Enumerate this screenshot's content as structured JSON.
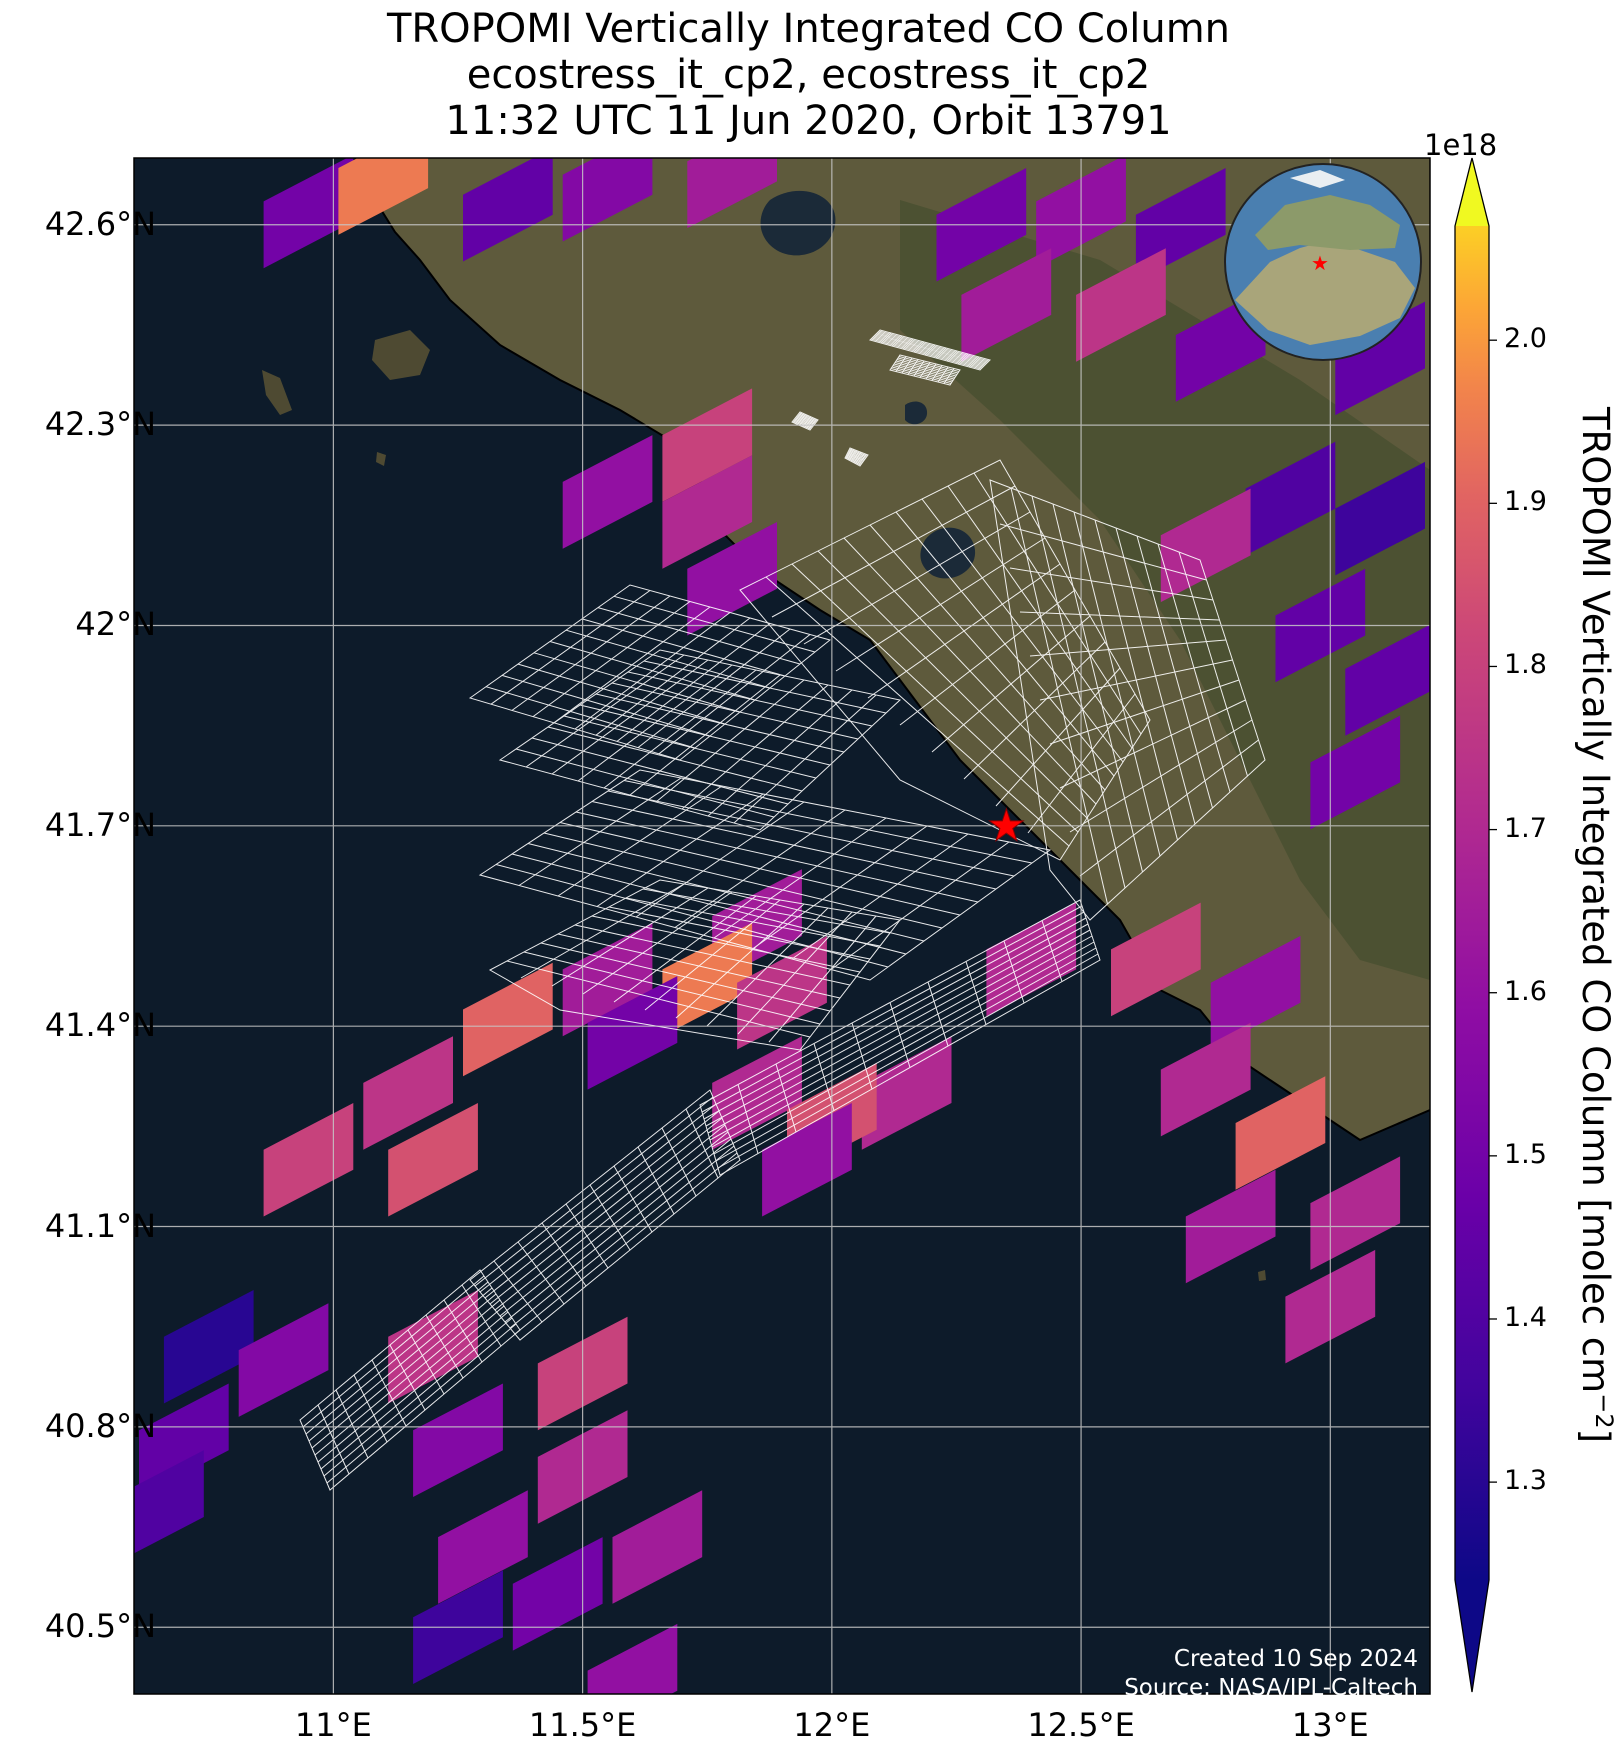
{
  "title": {
    "line1": "TROPOMI Vertically Integrated CO Column",
    "line2": "ecostress_it_cp2, ecostress_it_cp2",
    "line3": "11:32 UTC 11 Jun 2020, Orbit 13791"
  },
  "map": {
    "lon_range": [
      10.6,
      13.2
    ],
    "lat_range": [
      40.4,
      42.7
    ],
    "lat_ticks": [
      {
        "value": 42.6,
        "label": "42.6°N"
      },
      {
        "value": 42.3,
        "label": "42.3°N"
      },
      {
        "value": 42.0,
        "label": "42°N"
      },
      {
        "value": 41.7,
        "label": "41.7°N"
      },
      {
        "value": 41.4,
        "label": "41.4°N"
      },
      {
        "value": 41.1,
        "label": "41.1°N"
      },
      {
        "value": 40.8,
        "label": "40.8°N"
      },
      {
        "value": 40.5,
        "label": "40.5°N"
      }
    ],
    "lon_ticks": [
      {
        "value": 11.0,
        "label": "11°E"
      },
      {
        "value": 11.5,
        "label": "11.5°E"
      },
      {
        "value": 12.0,
        "label": "12°E"
      },
      {
        "value": 12.5,
        "label": "12.5°E"
      },
      {
        "value": 13.0,
        "label": "13°E"
      }
    ],
    "target_marker": {
      "lon": 12.35,
      "lat": 41.7,
      "symbol": "star",
      "color": "#ff0000"
    },
    "gridlines": true,
    "basemap": "satellite imagery",
    "sea_color": "#0d1b2a",
    "land_color": "#5e5a3c",
    "inset_globe": "top-right"
  },
  "colorbar": {
    "label": "TROPOMI Vertically Integrated CO Column [molec cm",
    "label_superscript": "−2",
    "label_close": "]",
    "exponent": "1e18",
    "min": 1.24,
    "max": 2.07,
    "colormap": "plasma",
    "extend": "both",
    "ticks": [
      {
        "value": 1.3,
        "label": "1.3"
      },
      {
        "value": 1.4,
        "label": "1.4"
      },
      {
        "value": 1.5,
        "label": "1.5"
      },
      {
        "value": 1.6,
        "label": "1.6"
      },
      {
        "value": 1.7,
        "label": "1.7"
      },
      {
        "value": 1.8,
        "label": "1.8"
      },
      {
        "value": 1.9,
        "label": "1.9"
      },
      {
        "value": 2.0,
        "label": "2.0"
      }
    ]
  },
  "credit": {
    "line1": "Created 10 Sep 2024",
    "line2": "Source: NASA/JPL-Caltech"
  },
  "chart_data": {
    "type": "heatmap",
    "title": "TROPOMI Vertically Integrated CO Column",
    "units": "molec cm^-2 (x1e18)",
    "cells": [
      {
        "lon": 10.95,
        "lat": 42.62,
        "value": 1.5
      },
      {
        "lon": 11.1,
        "lat": 42.67,
        "value": 1.95
      },
      {
        "lon": 11.35,
        "lat": 42.63,
        "value": 1.45
      },
      {
        "lon": 11.55,
        "lat": 42.66,
        "value": 1.55
      },
      {
        "lon": 11.8,
        "lat": 42.68,
        "value": 1.65
      },
      {
        "lon": 12.3,
        "lat": 42.6,
        "value": 1.5
      },
      {
        "lon": 12.5,
        "lat": 42.62,
        "value": 1.6
      },
      {
        "lon": 12.7,
        "lat": 42.6,
        "value": 1.45
      },
      {
        "lon": 12.35,
        "lat": 42.48,
        "value": 1.65
      },
      {
        "lon": 12.58,
        "lat": 42.48,
        "value": 1.75
      },
      {
        "lon": 12.78,
        "lat": 42.42,
        "value": 1.5
      },
      {
        "lon": 13.1,
        "lat": 42.4,
        "value": 1.45
      },
      {
        "lon": 11.75,
        "lat": 42.27,
        "value": 1.8
      },
      {
        "lon": 11.75,
        "lat": 42.17,
        "value": 1.7
      },
      {
        "lon": 11.55,
        "lat": 42.2,
        "value": 1.6
      },
      {
        "lon": 11.8,
        "lat": 42.07,
        "value": 1.6
      },
      {
        "lon": 12.92,
        "lat": 42.19,
        "value": 1.4
      },
      {
        "lon": 13.1,
        "lat": 42.16,
        "value": 1.35
      },
      {
        "lon": 12.75,
        "lat": 42.12,
        "value": 1.7
      },
      {
        "lon": 12.98,
        "lat": 42.0,
        "value": 1.45
      },
      {
        "lon": 13.12,
        "lat": 41.92,
        "value": 1.45
      },
      {
        "lon": 13.05,
        "lat": 41.78,
        "value": 1.5
      },
      {
        "lon": 11.85,
        "lat": 41.55,
        "value": 1.65
      },
      {
        "lon": 11.75,
        "lat": 41.47,
        "value": 1.95
      },
      {
        "lon": 11.9,
        "lat": 41.45,
        "value": 1.75
      },
      {
        "lon": 11.55,
        "lat": 41.47,
        "value": 1.65
      },
      {
        "lon": 11.6,
        "lat": 41.39,
        "value": 1.5
      },
      {
        "lon": 11.35,
        "lat": 41.41,
        "value": 1.9
      },
      {
        "lon": 11.85,
        "lat": 41.3,
        "value": 1.7
      },
      {
        "lon": 11.15,
        "lat": 41.3,
        "value": 1.75
      },
      {
        "lon": 10.95,
        "lat": 41.2,
        "value": 1.8
      },
      {
        "lon": 11.2,
        "lat": 41.2,
        "value": 1.85
      },
      {
        "lon": 12.4,
        "lat": 41.5,
        "value": 1.7
      },
      {
        "lon": 12.65,
        "lat": 41.5,
        "value": 1.8
      },
      {
        "lon": 12.85,
        "lat": 41.45,
        "value": 1.6
      },
      {
        "lon": 12.75,
        "lat": 41.32,
        "value": 1.7
      },
      {
        "lon": 12.9,
        "lat": 41.24,
        "value": 1.9
      },
      {
        "lon": 13.05,
        "lat": 41.12,
        "value": 1.7
      },
      {
        "lon": 12.8,
        "lat": 41.1,
        "value": 1.65
      },
      {
        "lon": 13.0,
        "lat": 40.98,
        "value": 1.7
      },
      {
        "lon": 12.15,
        "lat": 41.3,
        "value": 1.7
      },
      {
        "lon": 12.0,
        "lat": 41.26,
        "value": 1.85
      },
      {
        "lon": 11.95,
        "lat": 41.2,
        "value": 1.6
      },
      {
        "lon": 10.75,
        "lat": 40.92,
        "value": 1.3
      },
      {
        "lon": 10.9,
        "lat": 40.9,
        "value": 1.55
      },
      {
        "lon": 10.7,
        "lat": 40.78,
        "value": 1.45
      },
      {
        "lon": 10.65,
        "lat": 40.68,
        "value": 1.4
      },
      {
        "lon": 11.2,
        "lat": 40.92,
        "value": 1.75
      },
      {
        "lon": 11.25,
        "lat": 40.78,
        "value": 1.55
      },
      {
        "lon": 11.5,
        "lat": 40.88,
        "value": 1.8
      },
      {
        "lon": 11.5,
        "lat": 40.74,
        "value": 1.7
      },
      {
        "lon": 11.3,
        "lat": 40.62,
        "value": 1.6
      },
      {
        "lon": 11.45,
        "lat": 40.55,
        "value": 1.5
      },
      {
        "lon": 11.25,
        "lat": 40.5,
        "value": 1.35
      },
      {
        "lon": 11.65,
        "lat": 40.62,
        "value": 1.65
      },
      {
        "lon": 11.6,
        "lat": 40.42,
        "value": 1.6
      }
    ]
  }
}
